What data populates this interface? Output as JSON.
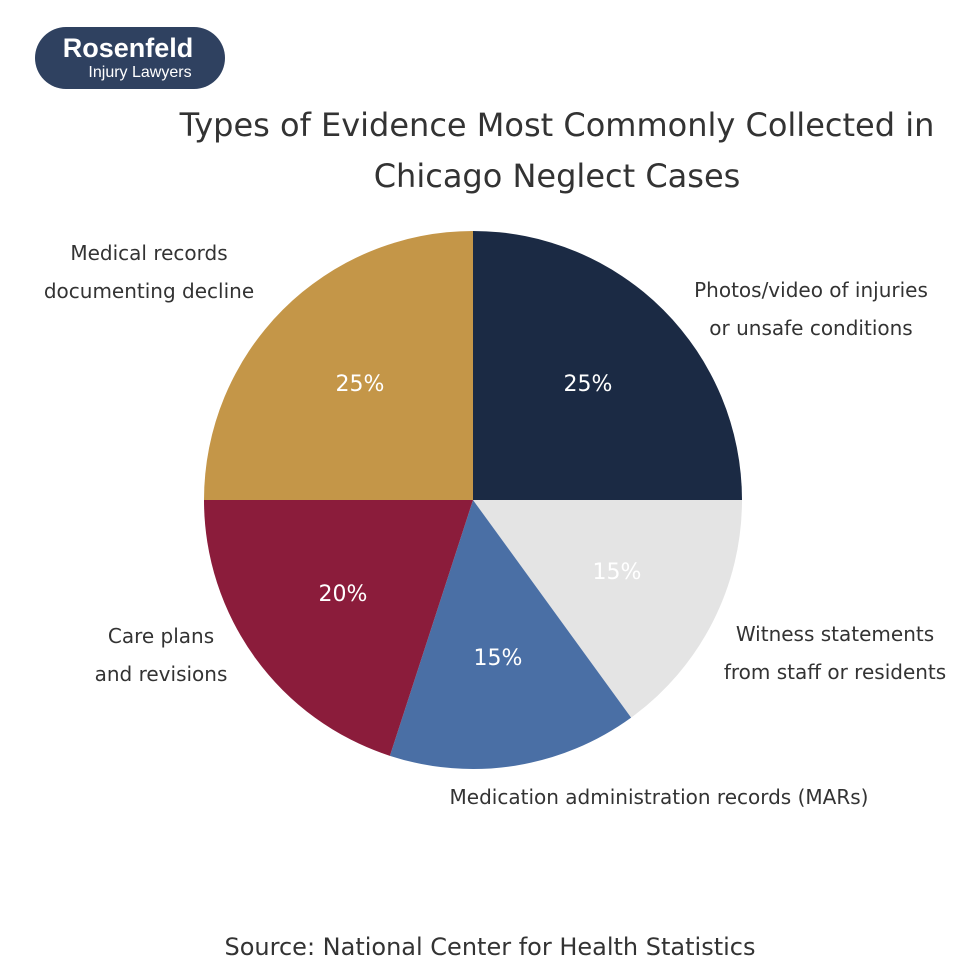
{
  "logo": {
    "name": "Rosenfeld",
    "tagline": "Injury Lawyers"
  },
  "chart_data": {
    "type": "pie",
    "title": "Types of Evidence Most Commonly Collected in\nChicago Neglect Cases",
    "categories": [
      "Photos/video of injuries\nor unsafe conditions",
      "Witness statements\nfrom staff or residents",
      "Medication administration records (MARs)",
      "Care plans\nand revisions",
      "Medical records\ndocumenting decline"
    ],
    "values": [
      25,
      15,
      15,
      20,
      25
    ],
    "value_labels": [
      "25%",
      "15%",
      "15%",
      "20%",
      "25%"
    ],
    "colors": [
      "#1b2a44",
      "#e4e4e4",
      "#4a6fa5",
      "#8b1c3b",
      "#c49648"
    ],
    "source": "Source: National Center for Health Statistics"
  }
}
